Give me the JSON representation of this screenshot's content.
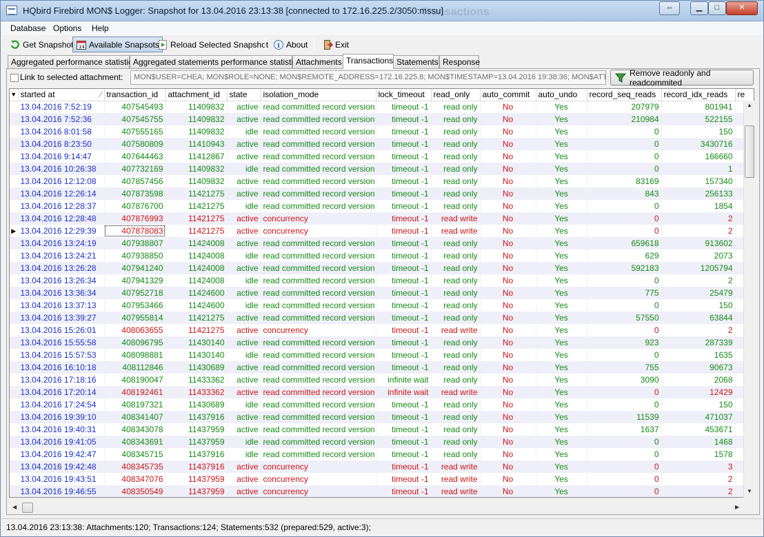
{
  "window": {
    "title": "HQbird Firebird MON$ Logger: Snapshot for 13.04.2016 23:13:38 [connected to 172.16.225.2/3050:mssu]",
    "title_shadow": "Transactions"
  },
  "menu": [
    "Database",
    "Options",
    "Help"
  ],
  "toolbar": {
    "get_snapshot": "Get Snapshot",
    "available_snapshots": "Available Snapsots",
    "reload": "Reload Selected Snapshot",
    "about": "About",
    "exit": "Exit"
  },
  "tabs": [
    "Aggregated performance statistics",
    "Aggregated statements performance statistics",
    "Attachments",
    "Transactions",
    "Statements",
    "Response"
  ],
  "active_tab": "Transactions",
  "filter": {
    "link_label": "Link to selected attachment:",
    "attachment_value": "MON$USER=CHEA; MON$ROLE=NONE; MON$REMOTE_ADDRESS=172.16.225.8; MON$TIMESTAMP=13.04.2016 19:38:36; MON$ATTACHME",
    "remove_button": "Remove readonly and readcommited"
  },
  "grid": {
    "columns": [
      "started at",
      "transaction_id",
      "attachment_id",
      "state",
      "isolation_mode",
      "lock_timeout",
      "read_only",
      "auto_commit",
      "auto_undo",
      "record_seq_reads",
      "record_idx_reads",
      "re"
    ],
    "rows": [
      [
        "13.04.2016 7:52:19",
        "407545493",
        "11409832",
        "active",
        "read committed record version",
        "timeout -1",
        "read only",
        "No",
        "Yes",
        "207979",
        "801941"
      ],
      [
        "13.04.2016 7:52:36",
        "407545755",
        "11409832",
        "active",
        "read committed record version",
        "timeout -1",
        "read only",
        "No",
        "Yes",
        "210984",
        "522155"
      ],
      [
        "13.04.2016 8:01:58",
        "407555165",
        "11409832",
        "idle",
        "read committed record version",
        "timeout -1",
        "read only",
        "No",
        "Yes",
        "0",
        "150"
      ],
      [
        "13.04.2016 8:23:50",
        "407580809",
        "11410943",
        "active",
        "read committed record version",
        "timeout -1",
        "read only",
        "No",
        "Yes",
        "0",
        "3430716"
      ],
      [
        "13.04.2016 9:14:47",
        "407644463",
        "11412867",
        "active",
        "read committed record version",
        "timeout -1",
        "read only",
        "No",
        "Yes",
        "0",
        "166660"
      ],
      [
        "13.04.2016 10:26:38",
        "407732169",
        "11409832",
        "idle",
        "read committed record version",
        "timeout -1",
        "read only",
        "No",
        "Yes",
        "0",
        "1"
      ],
      [
        "13.04.2016 12:12:08",
        "407857456",
        "11409832",
        "active",
        "read committed record version",
        "timeout -1",
        "read only",
        "No",
        "Yes",
        "83169",
        "157340"
      ],
      [
        "13.04.2016 12:26:14",
        "407873598",
        "11421275",
        "active",
        "read committed record version",
        "timeout -1",
        "read only",
        "No",
        "Yes",
        "843",
        "256133"
      ],
      [
        "13.04.2016 12:28:37",
        "407876700",
        "11421275",
        "idle",
        "read committed record version",
        "timeout -1",
        "read only",
        "No",
        "Yes",
        "0",
        "1854"
      ],
      [
        "13.04.2016 12:28:48",
        "407876993",
        "11421275",
        "active",
        "concurrency",
        "timeout -1",
        "read write",
        "No",
        "Yes",
        "0",
        "2"
      ],
      [
        "13.04.2016 12:29:39",
        "407878083",
        "11421275",
        "active",
        "concurrency",
        "timeout -1",
        "read write",
        "No",
        "Yes",
        "0",
        "2"
      ],
      [
        "13.04.2016 13:24:19",
        "407938807",
        "11424008",
        "active",
        "read committed record version",
        "timeout -1",
        "read only",
        "No",
        "Yes",
        "659618",
        "913602"
      ],
      [
        "13.04.2016 13:24:21",
        "407938850",
        "11424008",
        "idle",
        "read committed record version",
        "timeout -1",
        "read only",
        "No",
        "Yes",
        "629",
        "2073"
      ],
      [
        "13.04.2016 13:26:28",
        "407941240",
        "11424008",
        "active",
        "read committed record version",
        "timeout -1",
        "read only",
        "No",
        "Yes",
        "592183",
        "1205794"
      ],
      [
        "13.04.2016 13:26:34",
        "407941329",
        "11424008",
        "idle",
        "read committed record version",
        "timeout -1",
        "read only",
        "No",
        "Yes",
        "0",
        "2"
      ],
      [
        "13.04.2016 13:36:34",
        "407952718",
        "11424600",
        "active",
        "read committed record version",
        "timeout -1",
        "read only",
        "No",
        "Yes",
        "775",
        "25479"
      ],
      [
        "13.04.2016 13:37:13",
        "407953466",
        "11424600",
        "idle",
        "read committed record version",
        "timeout -1",
        "read only",
        "No",
        "Yes",
        "0",
        "150"
      ],
      [
        "13.04.2016 13:39:27",
        "407955814",
        "11421275",
        "active",
        "read committed record version",
        "timeout -1",
        "read only",
        "No",
        "Yes",
        "57550",
        "63844"
      ],
      [
        "13.04.2016 15:26:01",
        "408063655",
        "11421275",
        "active",
        "concurrency",
        "timeout -1",
        "read write",
        "No",
        "Yes",
        "0",
        "2"
      ],
      [
        "13.04.2016 15:55:58",
        "408096795",
        "11430140",
        "active",
        "read committed record version",
        "timeout -1",
        "read only",
        "No",
        "Yes",
        "923",
        "287339"
      ],
      [
        "13.04.2016 15:57:53",
        "408098881",
        "11430140",
        "idle",
        "read committed record version",
        "timeout -1",
        "read only",
        "No",
        "Yes",
        "0",
        "1635"
      ],
      [
        "13.04.2016 16:10:18",
        "408112846",
        "11430689",
        "active",
        "read committed record version",
        "timeout -1",
        "read only",
        "No",
        "Yes",
        "755",
        "90673"
      ],
      [
        "13.04.2016 17:18:16",
        "408190047",
        "11433362",
        "active",
        "read committed record version",
        "infinite wait",
        "read only",
        "No",
        "Yes",
        "3090",
        "2068"
      ],
      [
        "13.04.2016 17:20:14",
        "408192461",
        "11433362",
        "active",
        "read committed record version",
        "infinite wait",
        "read write",
        "No",
        "Yes",
        "0",
        "12429"
      ],
      [
        "13.04.2016 17:24:54",
        "408197321",
        "11430689",
        "idle",
        "read committed record version",
        "timeout -1",
        "read only",
        "No",
        "Yes",
        "0",
        "150"
      ],
      [
        "13.04.2016 19:39:10",
        "408341407",
        "11437916",
        "active",
        "read committed record version",
        "timeout -1",
        "read only",
        "No",
        "Yes",
        "11539",
        "471037"
      ],
      [
        "13.04.2016 19:40:31",
        "408343078",
        "11437959",
        "active",
        "read committed record version",
        "timeout -1",
        "read only",
        "No",
        "Yes",
        "1637",
        "453671"
      ],
      [
        "13.04.2016 19:41:05",
        "408343691",
        "11437959",
        "idle",
        "read committed record version",
        "timeout -1",
        "read only",
        "No",
        "Yes",
        "0",
        "1468"
      ],
      [
        "13.04.2016 19:42:47",
        "408345715",
        "11437916",
        "idle",
        "read committed record version",
        "timeout -1",
        "read only",
        "No",
        "Yes",
        "0",
        "1578"
      ],
      [
        "13.04.2016 19:42:48",
        "408345735",
        "11437916",
        "active",
        "concurrency",
        "timeout -1",
        "read write",
        "No",
        "Yes",
        "0",
        "3"
      ],
      [
        "13.04.2016 19:43:51",
        "408347076",
        "11437959",
        "active",
        "concurrency",
        "timeout -1",
        "read write",
        "No",
        "Yes",
        "0",
        "2"
      ],
      [
        "13.04.2016 19:46:55",
        "408350549",
        "11437959",
        "active",
        "concurrency",
        "timeout -1",
        "read write",
        "No",
        "Yes",
        "0",
        "2"
      ]
    ],
    "current_row": 10
  },
  "status": "13.04.2016 23:13:38: Attachments:120; Transactions:124; Statements:532 (prepared:529, active:3);",
  "colors": {
    "green": "#148a14",
    "red": "#cc1414",
    "date_blue": "#1b2fc7",
    "alt_row": "#efeff9"
  }
}
